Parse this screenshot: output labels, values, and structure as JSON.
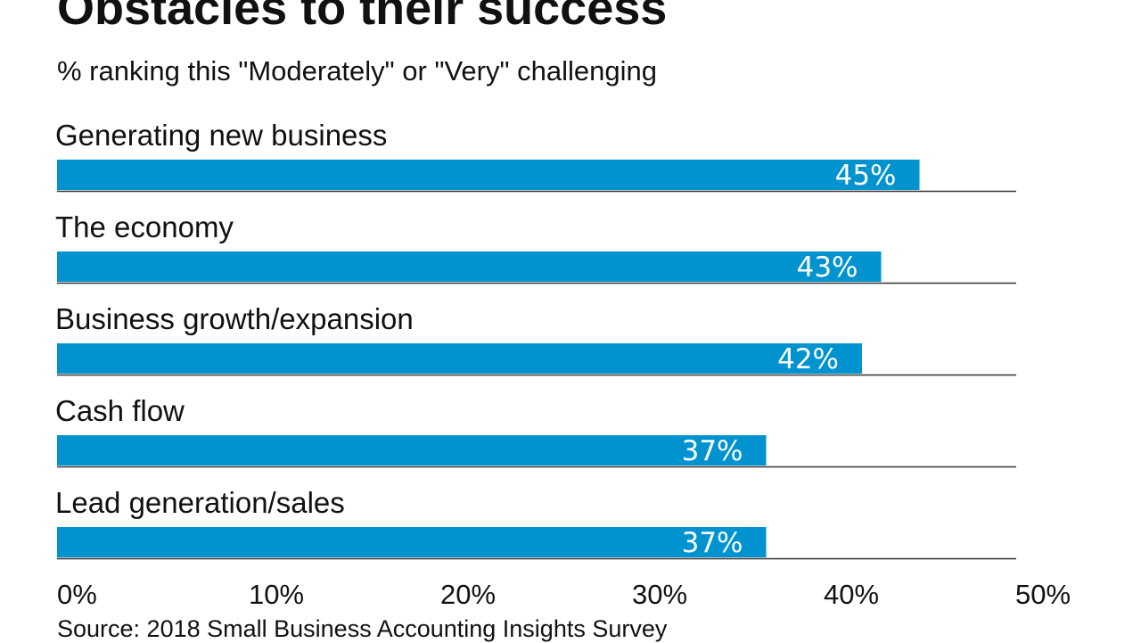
{
  "chart_data": {
    "type": "bar",
    "orientation": "horizontal",
    "title": "Obstacles to their success",
    "subtitle": "% ranking this \"Moderately\" or \"Very\" challenging",
    "categories": [
      "Generating new business",
      "The economy",
      "Business growth/expansion",
      "Cash flow",
      "Lead generation/sales"
    ],
    "values": [
      45,
      43,
      42,
      37,
      37
    ],
    "data_labels": [
      "45%",
      "43%",
      "42%",
      "37%",
      "37%"
    ],
    "xlim": [
      0,
      50
    ],
    "x_ticks": [
      "0%",
      "10%",
      "20%",
      "30%",
      "40%",
      "50%"
    ],
    "grid": false,
    "bar_color": "#0093d0",
    "source": "Source: 2018 Small Business Accounting Insights Survey"
  }
}
